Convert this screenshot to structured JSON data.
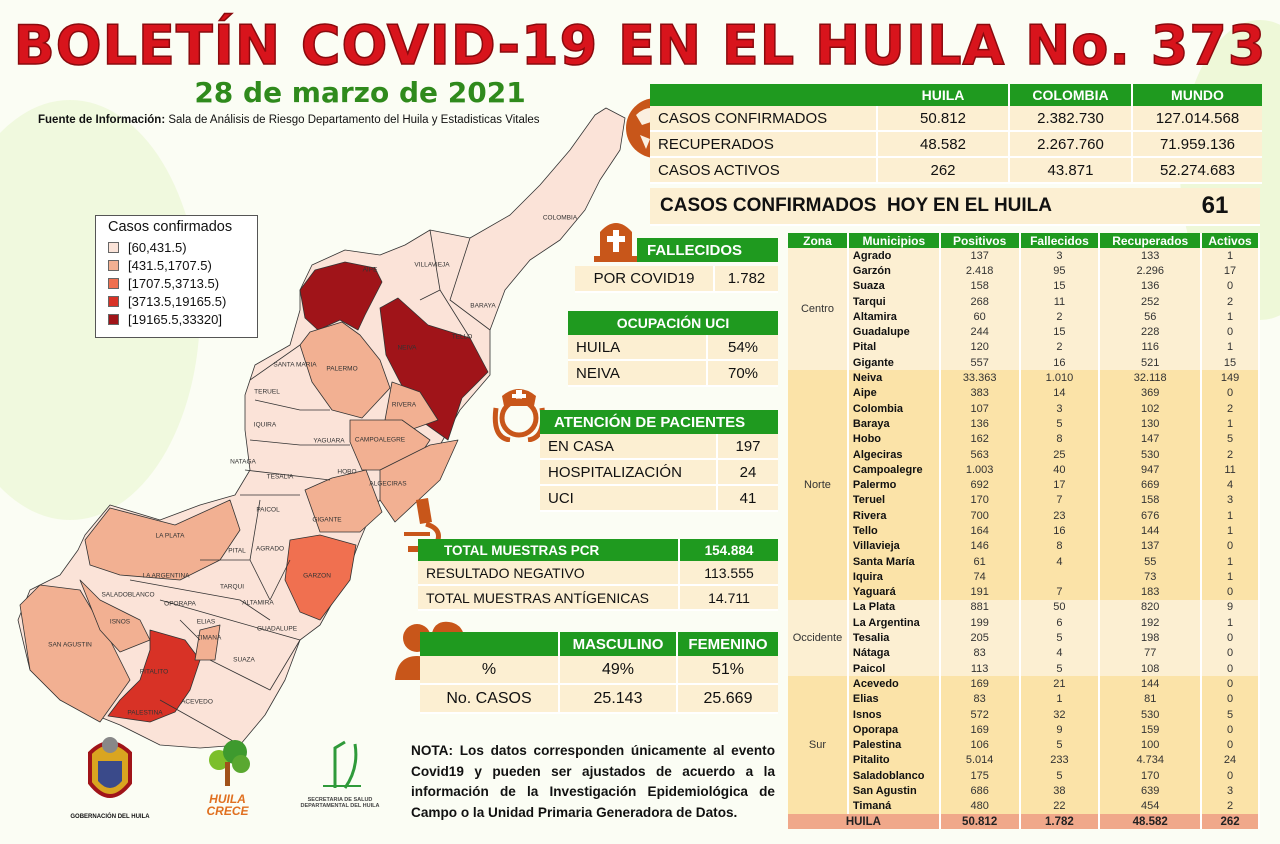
{
  "header": {
    "title": "BOLETÍN COVID-19 EN EL HUILA No. 373",
    "date": "28 de marzo de 2021",
    "source_label": "Fuente de Información:",
    "source_text": " Sala de Análisis de Riesgo Departamento del Huila y Estadisticas Vitales"
  },
  "summary": {
    "columns": [
      "HUILA",
      "COLOMBIA",
      "MUNDO"
    ],
    "rows": [
      {
        "label": "CASOS CONFIRMADOS",
        "values": [
          "50.812",
          "2.382.730",
          "127.014.568"
        ]
      },
      {
        "label": "RECUPERADOS",
        "values": [
          "48.582",
          "2.267.760",
          "71.959.136"
        ]
      },
      {
        "label": "CASOS ACTIVOS",
        "values": [
          "262",
          "43.871",
          "52.274.683"
        ]
      }
    ]
  },
  "today": {
    "label": "CASOS CONFIRMADOS  HOY EN EL HUILA",
    "value": "61"
  },
  "deaths": {
    "title": "FALLECIDOS",
    "label": "POR COVID19",
    "value": "1.782"
  },
  "icu": {
    "title": "OCUPACIÓN UCI",
    "rows": [
      {
        "label": "HUILA",
        "value": "54%"
      },
      {
        "label": "NEIVA",
        "value": "70%"
      }
    ]
  },
  "care": {
    "title": "ATENCIÓN DE PACIENTES",
    "rows": [
      {
        "label": "EN CASA",
        "value": "197"
      },
      {
        "label": "HOSPITALIZACIÓN",
        "value": "24"
      },
      {
        "label": "UCI",
        "value": "41"
      }
    ]
  },
  "pcr": {
    "title": "TOTAL MUESTRAS PCR",
    "total": "154.884",
    "rows": [
      {
        "label": "RESULTADO NEGATIVO",
        "value": "113.555"
      },
      {
        "label": "TOTAL MUESTRAS ANTÍGENICAS",
        "value": "14.711"
      }
    ]
  },
  "gender": {
    "columns": [
      "MASCULINO",
      "FEMENINO"
    ],
    "rows": [
      {
        "label": "%",
        "values": [
          "49%",
          "51%"
        ]
      },
      {
        "label": "No. CASOS",
        "values": [
          "25.143",
          "25.669"
        ]
      }
    ]
  },
  "note": {
    "label": "NOTA:",
    "text": " Los datos corresponden únicamente al evento Covid19 y pueden ser ajustados de acuerdo a la información de la Investigación Epidemiológica de Campo o la Unidad Primaria Generadora de Datos."
  },
  "legend": {
    "title": "Casos confirmados",
    "items": [
      {
        "label": "[60,431.5)",
        "color": "#fbe3d8"
      },
      {
        "label": "[431.5,1707.5)",
        "color": "#f2b092"
      },
      {
        "label": "[1707.5,3713.5)",
        "color": "#f07050"
      },
      {
        "label": "[3713.5,19165.5)",
        "color": "#d83226"
      },
      {
        "label": "[19165.5,33320]",
        "color": "#a01419"
      }
    ]
  },
  "map": {
    "labels": [
      "COLOMBIA",
      "VILLAVIEJA",
      "BARAYA",
      "TELLO",
      "NEIVA",
      "AIPE",
      "SANTA MARIA",
      "PALERMO",
      "TERUEL",
      "RIVERA",
      "IQUIRA",
      "YAGUARA",
      "CAMPOALEGRE",
      "NATAGA",
      "TESALIA",
      "HOBO",
      "ALGECIRAS",
      "PAICOL",
      "GIGANTE",
      "LA PLATA",
      "PITAL",
      "AGRADO",
      "GARZON",
      "LA ARGENTINA",
      "TARQUI",
      "SALADOBLANCO",
      "OPORAPA",
      "ALTAMIRA",
      "ISNOS",
      "ELIAS",
      "GUADALUPE",
      "TIMANA",
      "SAN AGUSTIN",
      "SUAZA",
      "PITALITO",
      "ACEVEDO",
      "PALESTINA"
    ]
  },
  "logos": {
    "gobernacion": "GOBERNACIÓN DEL HUILA",
    "huila_crece": "HUILA CRECE",
    "secretaria": "SECRETARIA DE SALUD DEPARTAMENTAL DEL HUILA"
  },
  "table": {
    "columns": [
      "Zona",
      "Municipios",
      "Positivos",
      "Fallecidos",
      "Recuperados",
      "Activos"
    ],
    "zones": [
      {
        "zone": "Centro",
        "rows": [
          [
            "Agrado",
            "137",
            "3",
            "133",
            "1"
          ],
          [
            "Garzón",
            "2.418",
            "95",
            "2.296",
            "17"
          ],
          [
            "Suaza",
            "158",
            "15",
            "136",
            "0"
          ],
          [
            "Tarqui",
            "268",
            "11",
            "252",
            "2"
          ],
          [
            "Altamira",
            "60",
            "2",
            "56",
            "1"
          ],
          [
            "Guadalupe",
            "244",
            "15",
            "228",
            "0"
          ],
          [
            "Pital",
            "120",
            "2",
            "116",
            "1"
          ],
          [
            "Gigante",
            "557",
            "16",
            "521",
            "15"
          ]
        ]
      },
      {
        "zone": "Norte",
        "rows": [
          [
            "Neiva",
            "33.363",
            "1.010",
            "32.118",
            "149"
          ],
          [
            "Aipe",
            "383",
            "14",
            "369",
            "0"
          ],
          [
            "Colombia",
            "107",
            "3",
            "102",
            "2"
          ],
          [
            "Baraya",
            "136",
            "5",
            "130",
            "1"
          ],
          [
            "Hobo",
            "162",
            "8",
            "147",
            "5"
          ],
          [
            "Algeciras",
            "563",
            "25",
            "530",
            "2"
          ],
          [
            "Campoalegre",
            "1.003",
            "40",
            "947",
            "11"
          ],
          [
            "Palermo",
            "692",
            "17",
            "669",
            "4"
          ],
          [
            "Teruel",
            "170",
            "7",
            "158",
            "3"
          ],
          [
            "Rivera",
            "700",
            "23",
            "676",
            "1"
          ],
          [
            "Tello",
            "164",
            "16",
            "144",
            "1"
          ],
          [
            "Villavieja",
            "146",
            "8",
            "137",
            "0"
          ],
          [
            "Santa María",
            "61",
            "4",
            "55",
            "1"
          ],
          [
            "Iquira",
            "74",
            "",
            "73",
            "1"
          ],
          [
            "Yaguará",
            "191",
            "7",
            "183",
            "0"
          ]
        ]
      },
      {
        "zone": "Occidente",
        "rows": [
          [
            "La Plata",
            "881",
            "50",
            "820",
            "9"
          ],
          [
            "La Argentina",
            "199",
            "6",
            "192",
            "1"
          ],
          [
            "Tesalia",
            "205",
            "5",
            "198",
            "0"
          ],
          [
            "Nátaga",
            "83",
            "4",
            "77",
            "0"
          ],
          [
            "Paicol",
            "113",
            "5",
            "108",
            "0"
          ]
        ]
      },
      {
        "zone": "Sur",
        "rows": [
          [
            "Acevedo",
            "169",
            "21",
            "144",
            "0"
          ],
          [
            "Elias",
            "83",
            "1",
            "81",
            "0"
          ],
          [
            "Isnos",
            "572",
            "32",
            "530",
            "5"
          ],
          [
            "Oporapa",
            "169",
            "9",
            "159",
            "0"
          ],
          [
            "Palestina",
            "106",
            "5",
            "100",
            "0"
          ],
          [
            "Pitalito",
            "5.014",
            "233",
            "4.734",
            "24"
          ],
          [
            "Saladoblanco",
            "175",
            "5",
            "170",
            "0"
          ],
          [
            "San Agustin",
            "686",
            "38",
            "639",
            "3"
          ],
          [
            "Timaná",
            "480",
            "22",
            "454",
            "2"
          ]
        ]
      }
    ],
    "total": [
      "HUILA",
      "50.812",
      "1.782",
      "48.582",
      "262"
    ]
  },
  "colors": {
    "green": "#1f9a1f",
    "title_red": "#d8141c",
    "icon_orange": "#c8561a",
    "row_bg": "#fcefd2"
  }
}
